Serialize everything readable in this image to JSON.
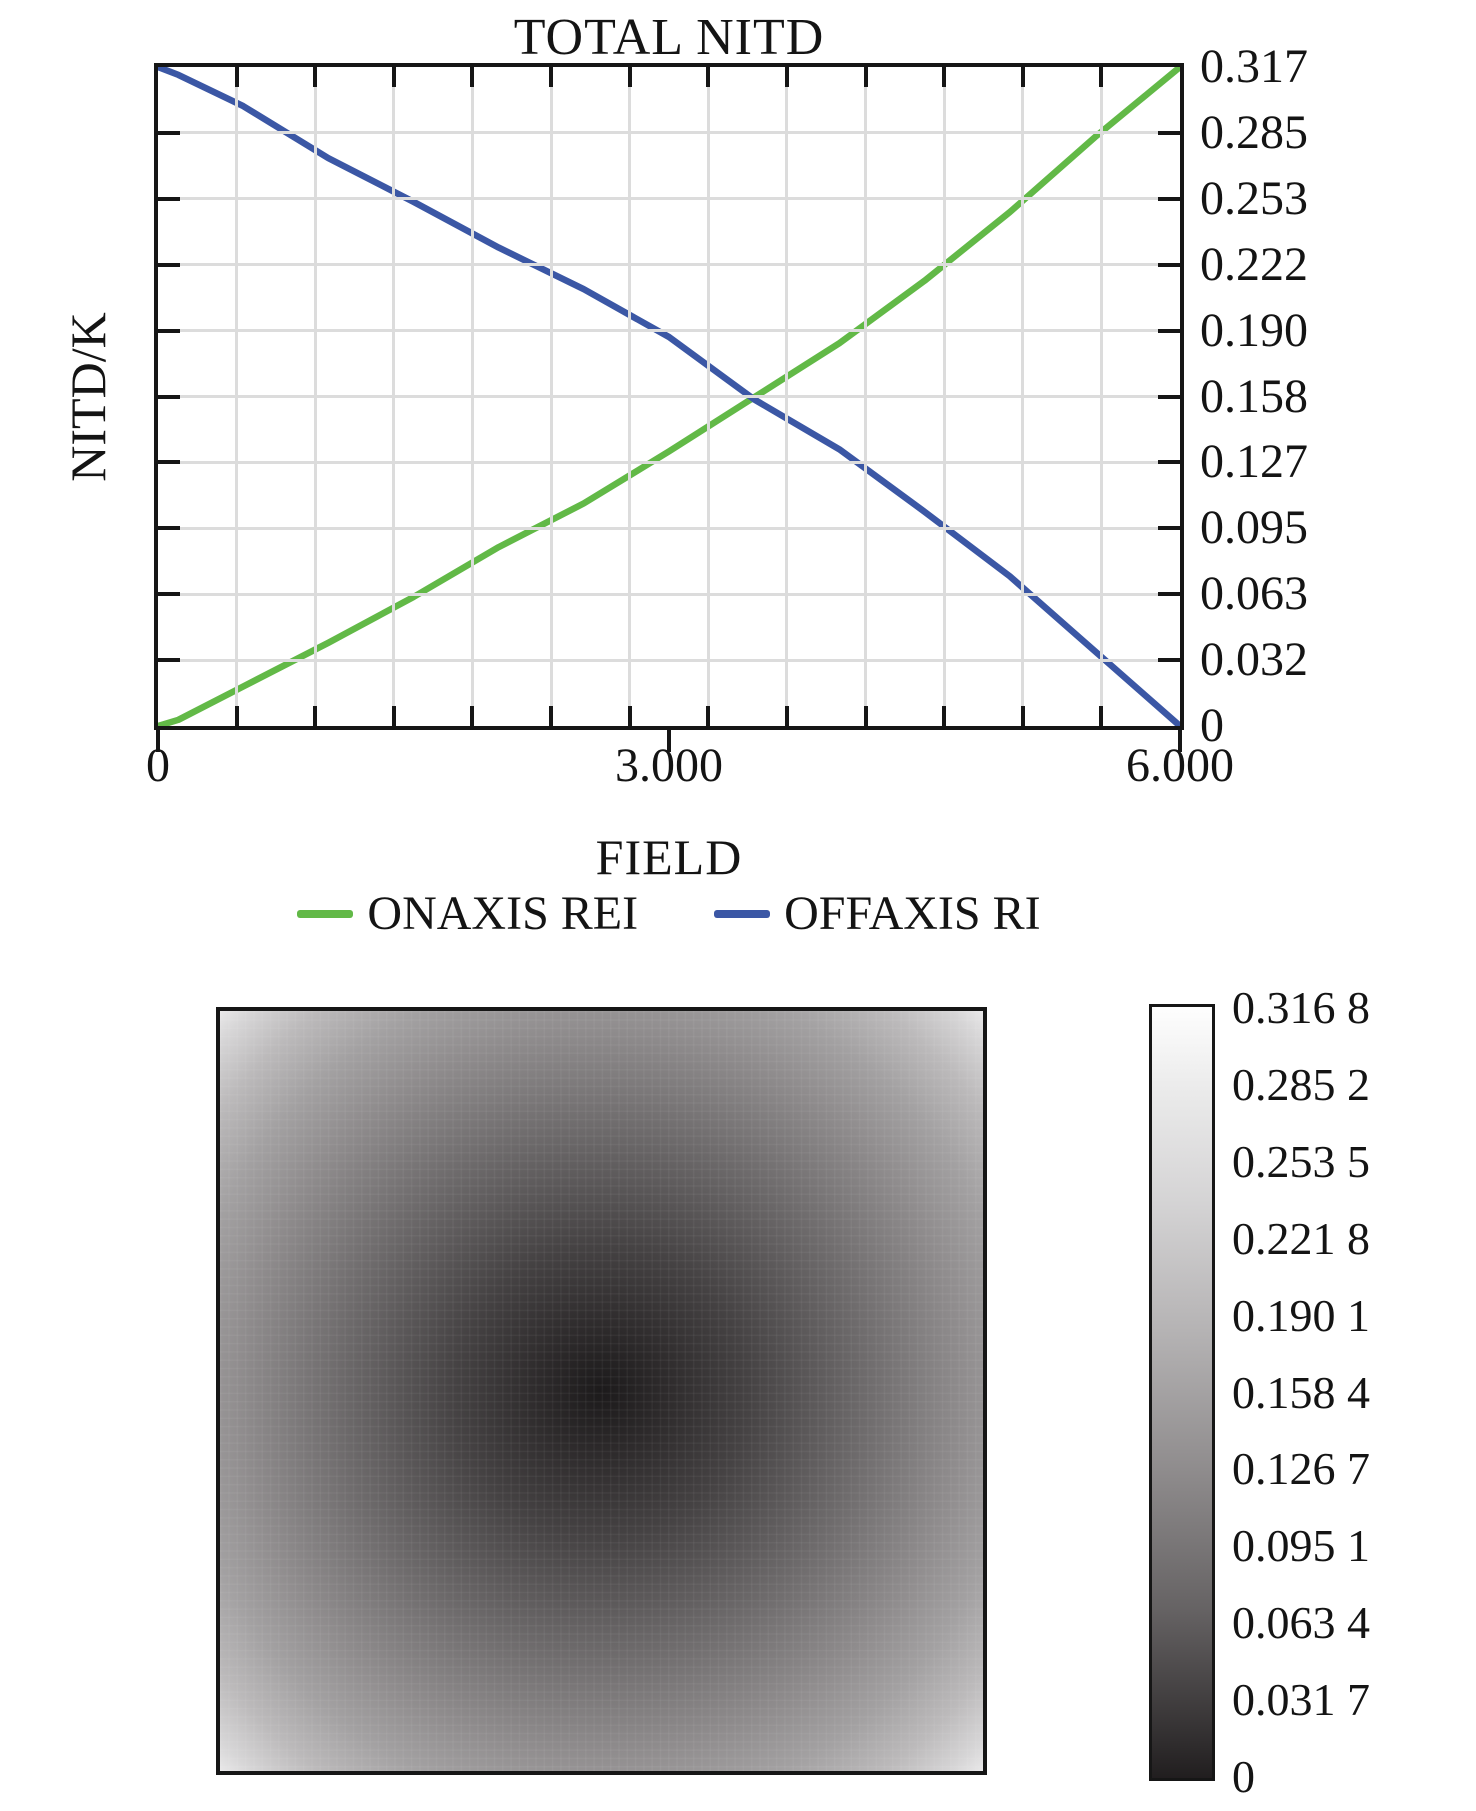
{
  "chart_data": [
    {
      "type": "line",
      "title": "TOTAL NITD",
      "xlabel": "FIELD",
      "ylabel": "NITD/K",
      "xlim": [
        0,
        6
      ],
      "ylim": [
        0,
        0.3168
      ],
      "grid": true,
      "x_minor_tick_divisions": 13,
      "y_tick_divisions": 10,
      "x_tick_labels": [
        "0",
        "3.000",
        "6.000"
      ],
      "x_tick_values": [
        0,
        3,
        6
      ],
      "y_tick_labels_top_to_bottom": [
        "0.317",
        "0.285",
        "0.253",
        "0.222",
        "0.190",
        "0.158",
        "0.127",
        "0.095",
        "0.063",
        "0.032",
        "0"
      ],
      "legend_position": "bottom",
      "grid_color": "#dcdcdc",
      "x": [
        0,
        0.12,
        0.5,
        1.0,
        1.5,
        2.0,
        2.5,
        3.0,
        3.5,
        4.0,
        4.5,
        5.0,
        5.5,
        6.0
      ],
      "series": [
        {
          "name": "ONAXIS REI",
          "color": "#62b947",
          "values": [
            0,
            0.003,
            0.019,
            0.04,
            0.062,
            0.086,
            0.107,
            0.132,
            0.158,
            0.184,
            0.214,
            0.247,
            0.283,
            0.3168
          ]
        },
        {
          "name": "OFFAXIS RI",
          "color": "#3b57a5",
          "values": [
            0.3168,
            0.313,
            0.298,
            0.273,
            0.252,
            0.23,
            0.21,
            0.187,
            0.157,
            0.133,
            0.103,
            0.072,
            0.036,
            0
          ]
        }
      ]
    },
    {
      "type": "heatmap",
      "description": "Square field map of total NITD: value 0 (black) at field center rising radially to 0.3168 (white) at the corners",
      "value_min": 0,
      "value_max": 0.3168,
      "value_at_center": 0,
      "value_at_corner": 0.3168,
      "colormap": "grayscale, black=0 to white=0.3168",
      "colorbar_tick_labels_top_to_bottom": [
        "0.316 8",
        "0.285 2",
        "0.253 5",
        "0.221 8",
        "0.190 1",
        "0.158 4",
        "0.126 7",
        "0.095 1",
        "0.063 4",
        "0.031 7",
        "0"
      ]
    }
  ]
}
